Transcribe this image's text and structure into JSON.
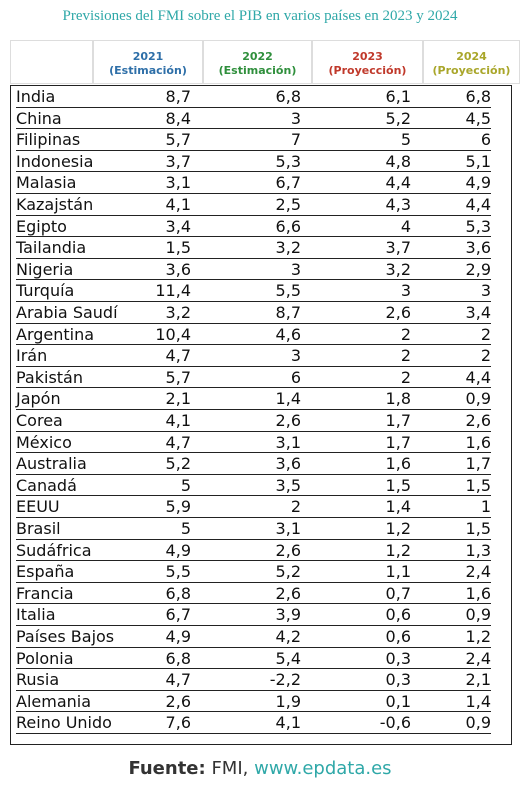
{
  "title": "Previsiones del FMI sobre el PIB en varios países en 2023 y 2024",
  "table": {
    "columns": [
      {
        "year": "2021",
        "note": "(Estimación)"
      },
      {
        "year": "2022",
        "note": "(Estimación)"
      },
      {
        "year": "2023",
        "note": "(Proyección)"
      },
      {
        "year": "2024",
        "note": "(Proyección)"
      }
    ],
    "rows": [
      [
        "India",
        "8,7",
        "6,8",
        "6,1",
        "6,8"
      ],
      [
        "China",
        "8,4",
        "3",
        "5,2",
        "4,5"
      ],
      [
        "Filipinas",
        "5,7",
        "7",
        "5",
        "6"
      ],
      [
        "Indonesia",
        "3,7",
        "5,3",
        "4,8",
        "5,1"
      ],
      [
        "Malasia",
        "3,1",
        "6,7",
        "4,4",
        "4,9"
      ],
      [
        "Kazajstán",
        "4,1",
        "2,5",
        "4,3",
        "4,4"
      ],
      [
        "Egipto",
        "3,4",
        "6,6",
        "4",
        "5,3"
      ],
      [
        "Tailandia",
        "1,5",
        "3,2",
        "3,7",
        "3,6"
      ],
      [
        "Nigeria",
        "3,6",
        "3",
        "3,2",
        "2,9"
      ],
      [
        "Turquía",
        "11,4",
        "5,5",
        "3",
        "3"
      ],
      [
        "Arabia Saudí",
        "3,2",
        "8,7",
        "2,6",
        "3,4"
      ],
      [
        "Argentina",
        "10,4",
        "4,6",
        "2",
        "2"
      ],
      [
        "Irán",
        "4,7",
        "3",
        "2",
        "2"
      ],
      [
        "Pakistán",
        "5,7",
        "6",
        "2",
        "4,4"
      ],
      [
        "Japón",
        "2,1",
        "1,4",
        "1,8",
        "0,9"
      ],
      [
        "Corea",
        "4,1",
        "2,6",
        "1,7",
        "2,6"
      ],
      [
        "México",
        "4,7",
        "3,1",
        "1,7",
        "1,6"
      ],
      [
        "Australia",
        "5,2",
        "3,6",
        "1,6",
        "1,7"
      ],
      [
        "Canadá",
        "5",
        "3,5",
        "1,5",
        "1,5"
      ],
      [
        "EEUU",
        "5,9",
        "2",
        "1,4",
        "1"
      ],
      [
        "Brasil",
        "5",
        "3,1",
        "1,2",
        "1,5"
      ],
      [
        "Sudáfrica",
        "4,9",
        "2,6",
        "1,2",
        "1,3"
      ],
      [
        "España",
        "5,5",
        "5,2",
        "1,1",
        "2,4"
      ],
      [
        "Francia",
        "6,8",
        "2,6",
        "0,7",
        "1,6"
      ],
      [
        "Italia",
        "6,7",
        "3,9",
        "0,6",
        "0,9"
      ],
      [
        "Países Bajos",
        "4,9",
        "4,2",
        "0,6",
        "1,2"
      ],
      [
        "Polonia",
        "6,8",
        "5,4",
        "0,3",
        "2,4"
      ],
      [
        "Rusia",
        "4,7",
        "-2,2",
        "0,3",
        "2,1"
      ],
      [
        "Alemania",
        "2,6",
        "1,9",
        "0,1",
        "1,4"
      ],
      [
        "Reino Unido",
        "7,6",
        "4,1",
        "-0,6",
        "0,9"
      ]
    ]
  },
  "source": {
    "label": "Fuente:",
    "name": "FMI,",
    "url": "www.epdata.es"
  }
}
